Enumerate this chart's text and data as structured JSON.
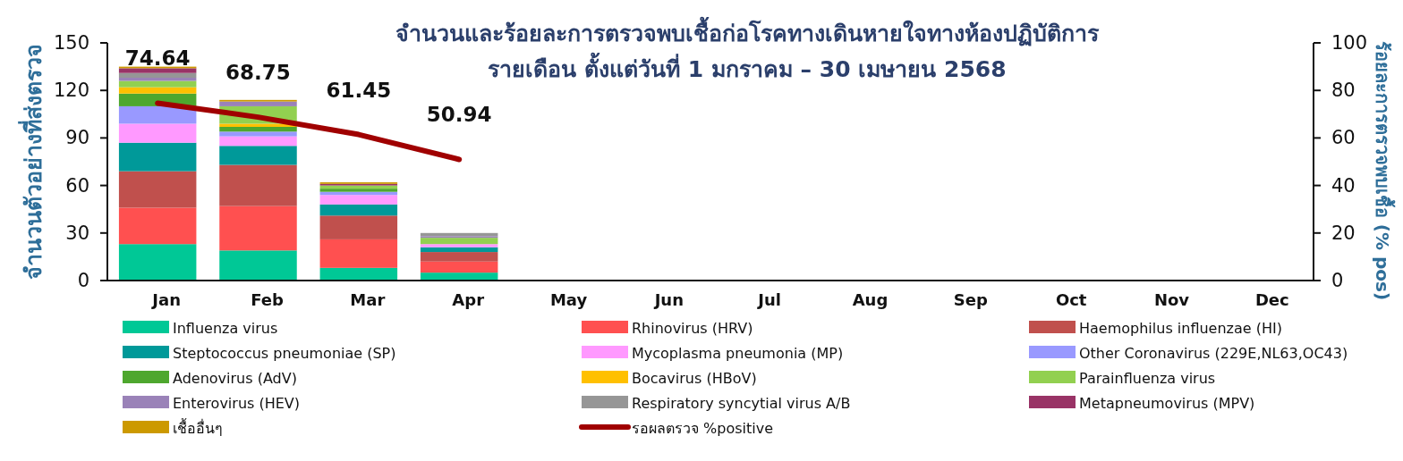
{
  "chart_data": {
    "type": "bar",
    "stacked": true,
    "title": "จำนวนและร้อยละการตรวจพบเชื้อก่อโรคทางเดินหายใจทางห้องปฏิบัติการ\nรายเดือน ตั้งแต่วันที่ 1 มกราคม – 30 เมษายน 2568",
    "ylabel": "จำนวนตัวอย่างที่ส่งตรวจ",
    "y2label": "ร้อยละการตรวจพบเชื้อ (% pos)",
    "categories": [
      "Jan",
      "Feb",
      "Mar",
      "Apr",
      "May",
      "Jun",
      "Jul",
      "Aug",
      "Sep",
      "Oct",
      "Nov",
      "Dec"
    ],
    "ylim": [
      0,
      150
    ],
    "yticks": [
      0,
      30,
      60,
      90,
      120,
      150
    ],
    "y2lim": [
      0,
      100
    ],
    "y2ticks": [
      0,
      20,
      40,
      60,
      80,
      100
    ],
    "legend": "bottom",
    "grid": false,
    "series": [
      {
        "name": "Influenza virus",
        "color": "#00c896",
        "values": [
          23,
          19,
          8,
          5,
          null,
          null,
          null,
          null,
          null,
          null,
          null,
          null
        ]
      },
      {
        "name": "Rhinovirus (HRV)",
        "color": "#ff5050",
        "values": [
          23,
          28,
          18,
          7,
          null,
          null,
          null,
          null,
          null,
          null,
          null,
          null
        ]
      },
      {
        "name": "Haemophilus influenzae (HI)",
        "color": "#c0504d",
        "values": [
          23,
          26,
          15,
          6,
          null,
          null,
          null,
          null,
          null,
          null,
          null,
          null
        ]
      },
      {
        "name": "Steptococcus pneumoniae (SP)",
        "color": "#009999",
        "values": [
          18,
          12,
          7,
          3,
          null,
          null,
          null,
          null,
          null,
          null,
          null,
          null
        ]
      },
      {
        "name": "Mycoplasma pneumonia (MP)",
        "color": "#ff99ff",
        "values": [
          12,
          6,
          6,
          2,
          null,
          null,
          null,
          null,
          null,
          null,
          null,
          null
        ]
      },
      {
        "name": "Other Coronavirus (229E,NL63,OC43)",
        "color": "#9999ff",
        "values": [
          11,
          3,
          2,
          0,
          null,
          null,
          null,
          null,
          null,
          null,
          null,
          null
        ]
      },
      {
        "name": "Adenovirus (AdV)",
        "color": "#4ea72e",
        "values": [
          8,
          3,
          2,
          0,
          null,
          null,
          null,
          null,
          null,
          null,
          null,
          null
        ]
      },
      {
        "name": "Bocavirus (HBoV)",
        "color": "#ffc000",
        "values": [
          4,
          2,
          0,
          0,
          null,
          null,
          null,
          null,
          null,
          null,
          null,
          null
        ]
      },
      {
        "name": "Parainfluenza virus",
        "color": "#92d050",
        "values": [
          4,
          11,
          2,
          4,
          null,
          null,
          null,
          null,
          null,
          null,
          null,
          null
        ]
      },
      {
        "name": "Enterovirus (HEV)",
        "color": "#9a82b8",
        "values": [
          2,
          3,
          0,
          1,
          null,
          null,
          null,
          null,
          null,
          null,
          null,
          null
        ]
      },
      {
        "name": "Respiratory syncytial virus A/B",
        "color": "#969696",
        "values": [
          3,
          0,
          0,
          2,
          null,
          null,
          null,
          null,
          null,
          null,
          null,
          null
        ]
      },
      {
        "name": "Metapneumovirus (MPV)",
        "color": "#993366",
        "values": [
          3,
          0,
          1,
          0,
          null,
          null,
          null,
          null,
          null,
          null,
          null,
          null
        ]
      },
      {
        "name": "เชื้ออื่นๆ",
        "color": "#cc9900",
        "values": [
          1,
          1,
          1,
          0,
          null,
          null,
          null,
          null,
          null,
          null,
          null,
          null
        ]
      },
      {
        "name": "รอผลตรวจ %positive",
        "type": "line",
        "axis": "y2",
        "color": "#a00000",
        "values": [
          74.64,
          68.75,
          61.45,
          50.94,
          null,
          null,
          null,
          null,
          null,
          null,
          null,
          null
        ],
        "value_labels": [
          "74.64",
          "68.75",
          "61.45",
          "50.94",
          null,
          null,
          null,
          null,
          null,
          null,
          null,
          null
        ]
      }
    ]
  }
}
